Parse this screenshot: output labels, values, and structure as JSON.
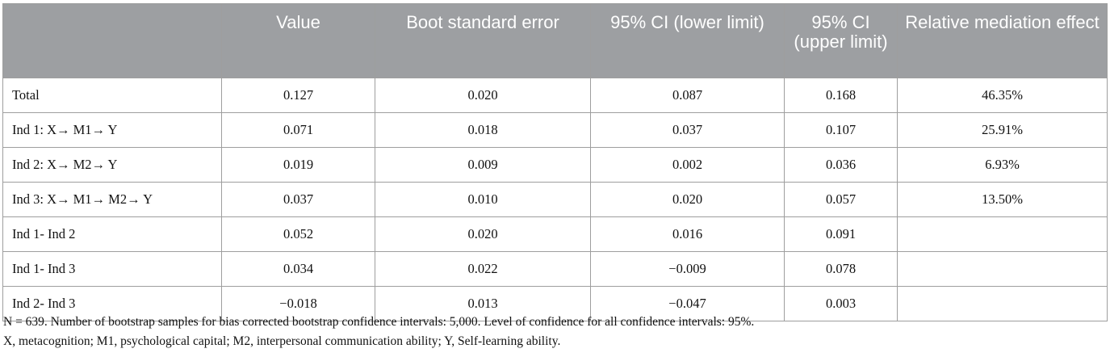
{
  "table": {
    "columns": [
      "",
      "Value",
      "Boot standard error",
      "95% CI (lower limit)",
      "95% CI (upper limit)",
      "Relative mediation effect"
    ],
    "rows": [
      [
        "Total",
        "0.127",
        "0.020",
        "0.087",
        "0.168",
        "46.35%"
      ],
      [
        "Ind 1: X→ M1→ Y",
        "0.071",
        "0.018",
        "0.037",
        "0.107",
        "25.91%"
      ],
      [
        "Ind 2: X→ M2→ Y",
        "0.019",
        "0.009",
        "0.002",
        "0.036",
        "6.93%"
      ],
      [
        "Ind 3: X→ M1→ M2→ Y",
        "0.037",
        "0.010",
        "0.020",
        "0.057",
        "13.50%"
      ],
      [
        "Ind 1- Ind 2",
        "0.052",
        "0.020",
        "0.016",
        "0.091",
        ""
      ],
      [
        "Ind 1- Ind 3",
        "0.034",
        "0.022",
        "−0.009",
        "0.078",
        ""
      ],
      [
        "Ind 2- Ind 3",
        "−0.018",
        "0.013",
        "−0.047",
        "0.003",
        ""
      ]
    ]
  },
  "footnotes": [
    "N = 639. Number of bootstrap samples for bias corrected bootstrap confidence intervals: 5,000. Level of confidence for all confidence intervals: 95%.",
    "X, metacognition; M1, psychological capital; M2, interpersonal communication ability; Y, Self-learning ability."
  ]
}
